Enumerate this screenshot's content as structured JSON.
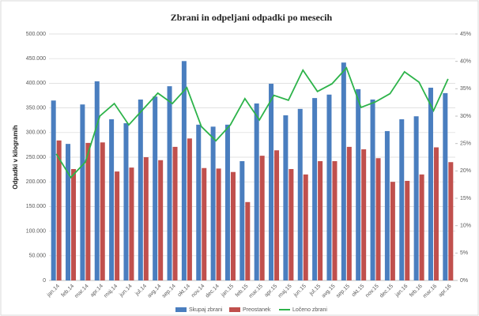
{
  "chart_data": {
    "type": "bar-line",
    "title": "Zbrani in odpeljani odpadki po mesecih",
    "ylabel": "Odpadki v kilogramih",
    "categories": [
      "jan.14",
      "feb.14",
      "mar.14",
      "apr.14",
      "maj.14",
      "jun.14",
      "jul.14",
      "avg.14",
      "sep.14",
      "okt.14",
      "nov.14",
      "dec.14",
      "jan.15",
      "feb.15",
      "mar.15",
      "apr.15",
      "maj.15",
      "jun.15",
      "jul.15",
      "avg.15",
      "sep.15",
      "okt.15",
      "nov.15",
      "dec.15",
      "jan.16",
      "feb.16",
      "mar.16",
      "apr.16"
    ],
    "series": [
      {
        "name": "Skupaj zbrani",
        "type": "bar",
        "color": "#4a7ebf",
        "values": [
          365000,
          277000,
          357000,
          404000,
          327000,
          319000,
          367000,
          373000,
          394000,
          445000,
          316000,
          312000,
          316000,
          242000,
          359000,
          399000,
          335000,
          348000,
          370000,
          377000,
          442000,
          388000,
          367000,
          303000,
          327000,
          333000,
          391000,
          380000
        ]
      },
      {
        "name": "Preostanek",
        "type": "bar",
        "color": "#c0504d",
        "values": [
          284000,
          226000,
          279000,
          280000,
          221000,
          229000,
          250000,
          244000,
          271000,
          288000,
          228000,
          227000,
          220000,
          159000,
          253000,
          264000,
          226000,
          215000,
          242000,
          242000,
          271000,
          266000,
          248000,
          200000,
          202000,
          215000,
          270000,
          240000
        ]
      },
      {
        "name": "Ločeno zbrani",
        "type": "line",
        "axis": "y2",
        "color": "#2db34a",
        "values": [
          23.1,
          18.8,
          21.6,
          30.0,
          32.3,
          28.4,
          31.3,
          34.2,
          32.3,
          35.2,
          28.1,
          25.5,
          28.4,
          33.2,
          29.3,
          33.8,
          32.9,
          38.4,
          34.5,
          35.9,
          38.8,
          31.6,
          32.6,
          34.1,
          38.1,
          36.2,
          31.0,
          36.8
        ]
      }
    ],
    "ylim": [
      0,
      500000
    ],
    "yticks": [
      0,
      {
        "value": 50000,
        "label": "50.000"
      },
      {
        "value": 100000,
        "label": "100.000"
      },
      {
        "value": 150000,
        "label": "150.000"
      },
      {
        "value": 200000,
        "label": "200.000"
      },
      {
        "value": 250000,
        "label": "250.000"
      },
      {
        "value": 300000,
        "label": "300.000"
      },
      {
        "value": 350000,
        "label": "350.000"
      },
      {
        "value": 400000,
        "label": "400.000"
      },
      {
        "value": 450000,
        "label": "450.000"
      },
      {
        "value": 500000,
        "label": "500.000"
      }
    ],
    "y2lim": [
      0,
      45
    ],
    "y2ticks": [
      {
        "value": 0,
        "label": "0%"
      },
      {
        "value": 5,
        "label": "5%"
      },
      {
        "value": 10,
        "label": "10%"
      },
      {
        "value": 15,
        "label": "15%"
      },
      {
        "value": 20,
        "label": "20%"
      },
      {
        "value": 25,
        "label": "25%"
      },
      {
        "value": 30,
        "label": "30%"
      },
      {
        "value": 35,
        "label": "35%"
      },
      {
        "value": 40,
        "label": "40%"
      },
      {
        "value": 45,
        "label": "45%"
      }
    ],
    "grid": true,
    "legend": "bottom"
  }
}
